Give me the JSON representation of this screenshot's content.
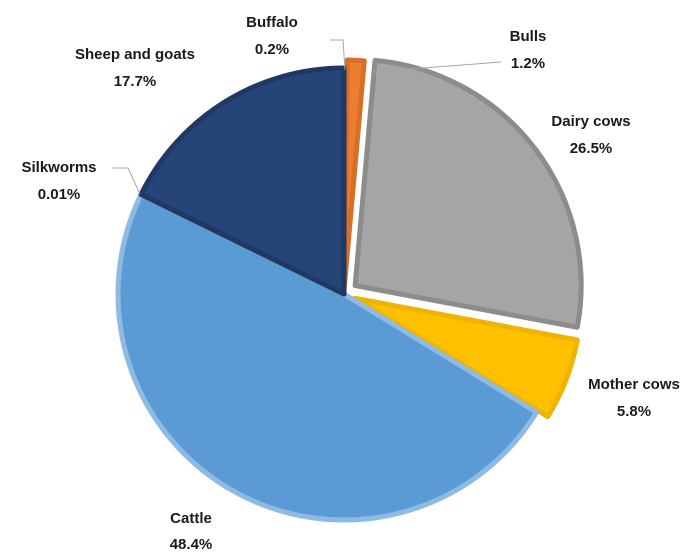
{
  "chart_data": {
    "type": "pie",
    "title": "",
    "unit": "%",
    "slices": [
      {
        "name": "Buffalo",
        "value": 0.2,
        "label": "0.2%",
        "color": "#c55a11"
      },
      {
        "name": "Bulls",
        "value": 1.2,
        "label": "1.2%",
        "color": "#ed7d31"
      },
      {
        "name": "Dairy cows",
        "value": 26.5,
        "label": "26.5%",
        "color": "#a5a5a5"
      },
      {
        "name": "Mother cows",
        "value": 5.8,
        "label": "5.8%",
        "color": "#ffc000"
      },
      {
        "name": "Cattle",
        "value": 48.4,
        "label": "48.4%",
        "color": "#5b9bd5"
      },
      {
        "name": "Silkworms",
        "value": 0.01,
        "label": "0.01%",
        "color": "#7f7f7f"
      },
      {
        "name": "Sheep and goats",
        "value": 17.7,
        "label": "17.7%",
        "color": "#264478"
      }
    ],
    "start_angle_deg": 0,
    "direction": "clockwise",
    "legend": "none",
    "data_labels": "outside with leader lines"
  }
}
